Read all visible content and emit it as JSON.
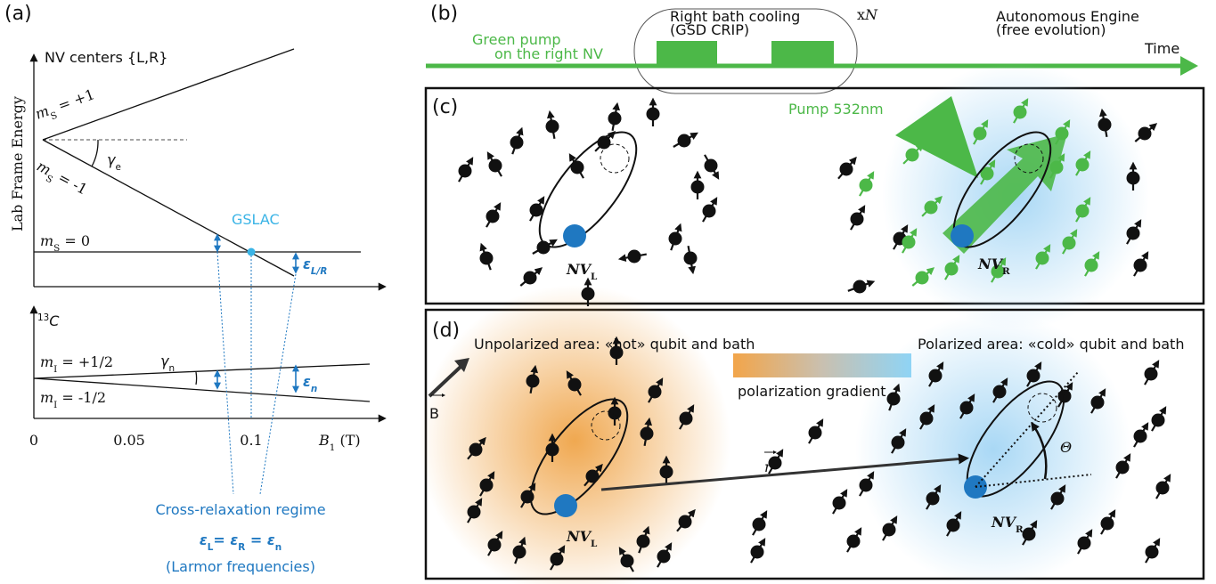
{
  "panel_a": {
    "label": "(a)",
    "title": "NV centers {L,R}",
    "y_axis_label": "Lab Frame Energy",
    "electron_levels": [
      {
        "base": "m",
        "sub": "S",
        "tail": " = +1"
      },
      {
        "base": "m",
        "sub": "S",
        "tail": " = -1"
      },
      {
        "base": "m",
        "sub": "S",
        "tail": " = 0"
      }
    ],
    "gamma_e": {
      "base": "γ",
      "sub": "e"
    },
    "gslac": "GSLAC",
    "epsilon_lr": {
      "base": "ε",
      "sub": "L/R"
    },
    "nuclear": {
      "sup": "13",
      "base": "C"
    },
    "nuclear_levels": [
      {
        "base": "m",
        "sub": "I",
        "tail": " = +1/2"
      },
      {
        "base": "m",
        "sub": "I",
        "tail": " = -1/2"
      }
    ],
    "gamma_n": {
      "base": "γ",
      "sub": "n"
    },
    "epsilon_n": {
      "base": "ε",
      "sub": "n"
    },
    "x_ticks": [
      "0",
      "0.05",
      "0.1"
    ],
    "x_axis_label": {
      "base": "B",
      "sub": "1",
      "tail": " (T)"
    },
    "regime": "Cross-relaxation regime",
    "condition": [
      {
        "base": "ε",
        "sub": "L",
        "tail": "= "
      },
      {
        "base": "ε",
        "sub": "R",
        "tail": " = "
      },
      {
        "base": "ε",
        "sub": "n"
      }
    ],
    "note": "(Larmor frequencies)"
  },
  "panel_b": {
    "label": "(b)",
    "pump": "Green pump",
    "pump_note": "on the right NV",
    "cooling": "Right bath cooling",
    "cooling_note": "(GSD CRIP)",
    "repeat": {
      "base": "x",
      "tail": "N"
    },
    "engine": "Autonomous Engine",
    "engine_note": "(free evolution)",
    "time": "Time"
  },
  "panel_c": {
    "label": "(c)",
    "pump": "Pump 532nm",
    "nv_left": {
      "base": "NV",
      "sub": "L"
    },
    "nv_right": {
      "base": "NV",
      "sub": "R"
    }
  },
  "panel_d": {
    "label": "(d)",
    "field": "B",
    "unpolarized": "Unpolarized area: «hot» qubit and bath",
    "polarized": "Polarized area: «cold» qubit and bath",
    "gradient": "polarization gradient",
    "distance": "r",
    "angle": "Θ",
    "nv_left": {
      "base": "NV",
      "sub": "L"
    },
    "nv_right": {
      "base": "NV",
      "sub": "R"
    }
  }
}
